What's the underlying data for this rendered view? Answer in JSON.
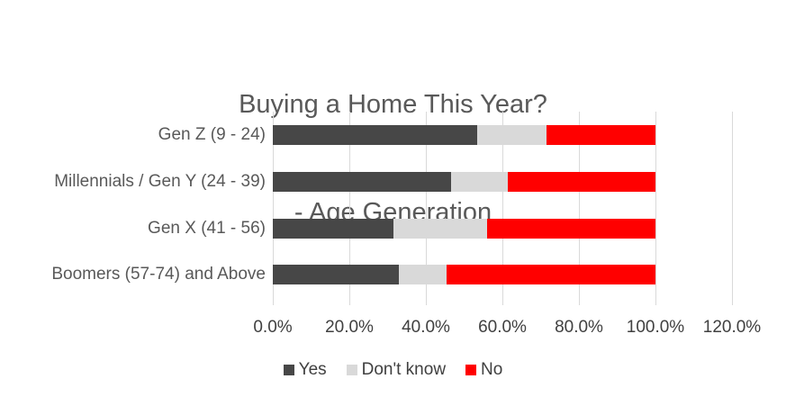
{
  "title": {
    "line1": "Buying a Home This Year?",
    "line2": "- Age Generation"
  },
  "colors": {
    "yes": "#474747",
    "dont_know": "#d9d9d9",
    "no": "#ff0000",
    "gridline": "#d9d9d9",
    "title_text": "#595959",
    "axis_text": "#404040",
    "category_text": "#595959"
  },
  "chart_data": {
    "type": "bar",
    "orientation": "horizontal",
    "stacked": true,
    "title": "Buying a Home This Year? - Age Generation",
    "categories": [
      "Gen Z (9 - 24)",
      "Millennials / Gen Y (24 - 39)",
      "Gen X (41 - 56)",
      "Boomers (57-74) and Above"
    ],
    "series": [
      {
        "name": "Yes",
        "color": "#474747",
        "values": [
          53.5,
          46.5,
          31.5,
          33.0
        ]
      },
      {
        "name": "Don't know",
        "color": "#d9d9d9",
        "values": [
          18.0,
          15.0,
          24.5,
          12.5
        ]
      },
      {
        "name": "No",
        "color": "#ff0000",
        "values": [
          28.5,
          38.5,
          44.0,
          54.5
        ]
      }
    ],
    "xlabel": "",
    "ylabel": "",
    "x_ticks": [
      "0.0%",
      "20.0%",
      "40.0%",
      "60.0%",
      "80.0%",
      "100.0%",
      "120.0%"
    ],
    "xlim": [
      0,
      120
    ],
    "grid": true,
    "legend_position": "bottom"
  }
}
